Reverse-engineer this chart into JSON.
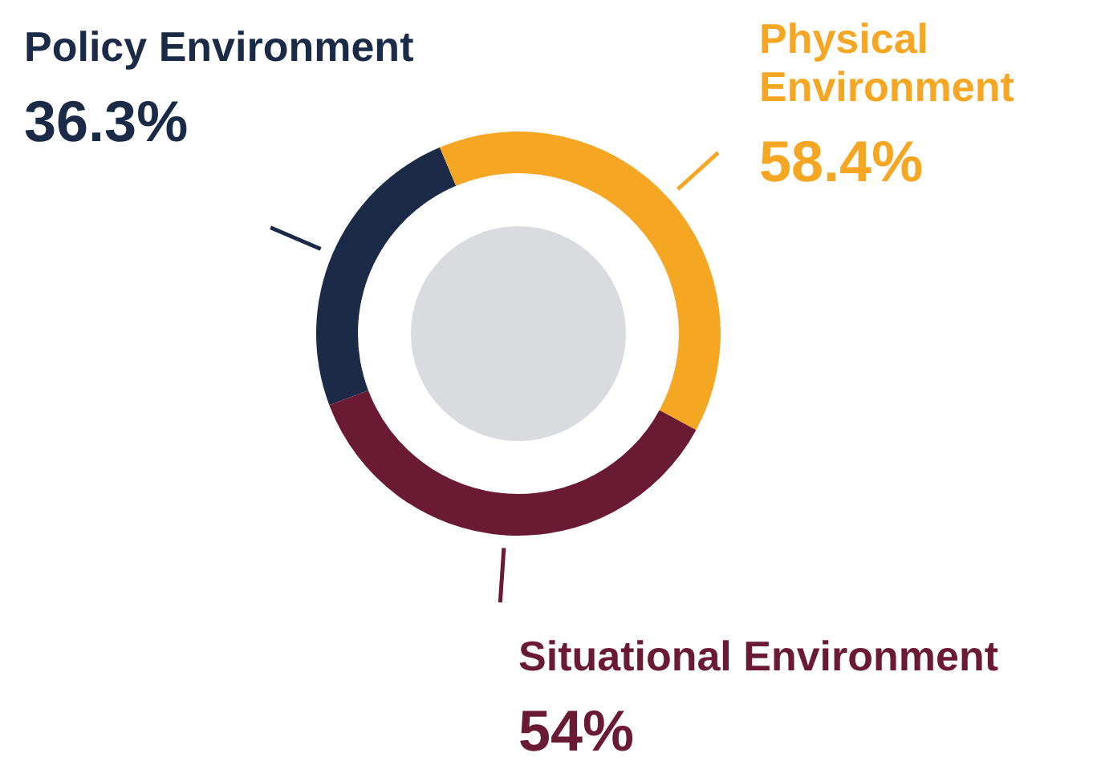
{
  "chart_data": {
    "type": "donut",
    "categories": [
      "Policy Environment",
      "Physical Environment",
      "Situational Environment"
    ],
    "values": [
      36.3,
      58.4,
      54
    ],
    "value_labels": [
      "36.3%",
      "58.4%",
      "54%"
    ],
    "colors": [
      "#1b2a47",
      "#f5a623",
      "#6b1a33"
    ]
  }
}
